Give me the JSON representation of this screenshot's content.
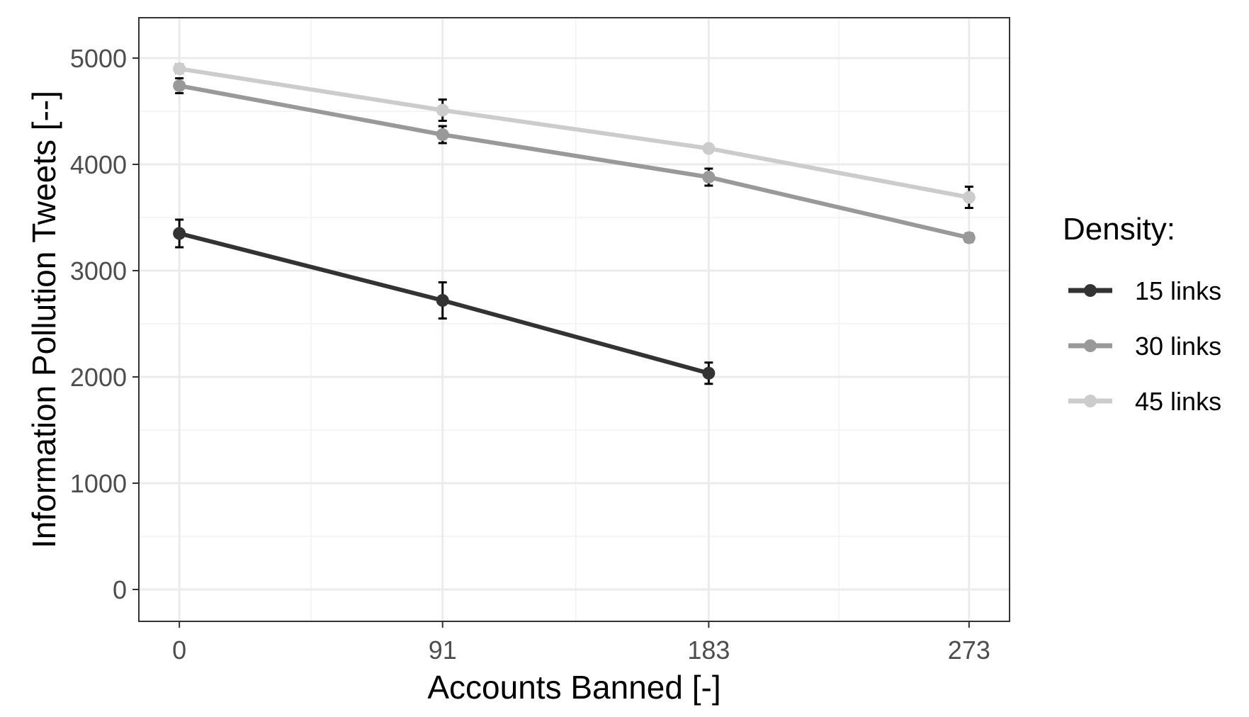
{
  "chart_data": {
    "type": "line",
    "xlabel": "Accounts Banned [-]",
    "ylabel": "Information Pollution Tweets [--]",
    "x": [
      0,
      91,
      183,
      273
    ],
    "x_tick_labels": [
      "0",
      "91",
      "183",
      "273"
    ],
    "y_ticks": [
      0,
      1000,
      2000,
      3000,
      4000,
      5000
    ],
    "y_tick_labels": [
      "0",
      "1000",
      "2000",
      "3000",
      "4000",
      "5000"
    ],
    "xlim": [
      -14,
      287
    ],
    "ylim": [
      -300,
      5380
    ],
    "grid": true,
    "legend": {
      "title": "Density:",
      "placement": "right"
    },
    "series": [
      {
        "name": "15 links",
        "color": "#333333",
        "x": [
          0,
          91,
          183
        ],
        "values": [
          3350,
          2720,
          2035
        ],
        "error": [
          130,
          170,
          100
        ]
      },
      {
        "name": "30 links",
        "color": "#999999",
        "x": [
          0,
          91,
          183,
          273
        ],
        "values": [
          4740,
          4280,
          3880,
          3310
        ],
        "error": [
          70,
          80,
          80,
          40
        ]
      },
      {
        "name": "45 links",
        "color": "#cccccc",
        "x": [
          0,
          91,
          183,
          273
        ],
        "values": [
          4900,
          4510,
          4150,
          3690
        ],
        "error": [
          40,
          100,
          30,
          100
        ]
      }
    ]
  }
}
